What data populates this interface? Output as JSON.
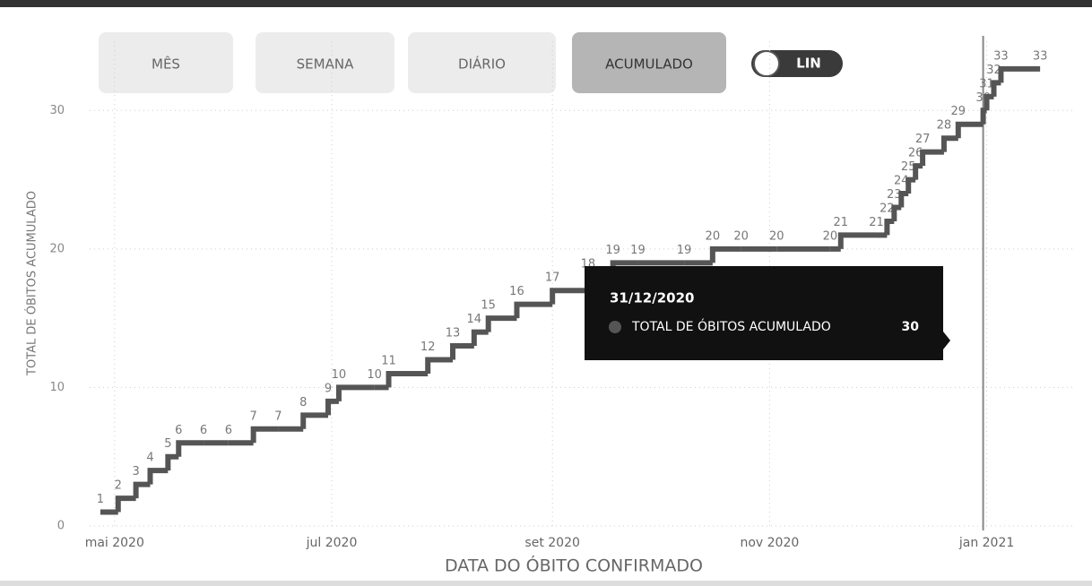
{
  "controls": {
    "buttons": [
      "MÊS",
      "SEMANA",
      "DIÁRIO",
      "ACUMULADO"
    ],
    "selected": 3,
    "toggle": "LIN"
  },
  "chart_data": {
    "type": "step",
    "x_label": "DATA DO ÓBITO CONFIRMADO",
    "y_label": "TOTAL DE ÓBITOS ACUMULADO",
    "series": [
      {
        "name": "TOTAL DE ÓBITOS ACUMULADO",
        "color": "#555555",
        "x": [
          "27/04/2020",
          "02/05/2020",
          "07/05/2020",
          "11/05/2020",
          "16/05/2020",
          "19/05/2020",
          "26/05/2020",
          "02/06/2020",
          "09/06/2020",
          "16/06/2020",
          "23/06/2020",
          "30/06/2020",
          "03/07/2020",
          "13/07/2020",
          "17/07/2020",
          "28/07/2020",
          "04/08/2020",
          "10/08/2020",
          "14/08/2020",
          "22/08/2020",
          "01/09/2020",
          "11/09/2020",
          "18/09/2020",
          "25/09/2020",
          "08/10/2020",
          "16/10/2020",
          "24/10/2020",
          "03/11/2020",
          "18/11/2020",
          "21/11/2020",
          "01/12/2020",
          "04/12/2020",
          "06/12/2020",
          "08/12/2020",
          "10/12/2020",
          "12/12/2020",
          "14/12/2020",
          "20/12/2020",
          "24/12/2020",
          "31/12/2020",
          "01/01/2021",
          "03/01/2021",
          "05/01/2021",
          "16/01/2021"
        ],
        "values": [
          1,
          2,
          3,
          4,
          5,
          6,
          6,
          6,
          7,
          7,
          8,
          9,
          10,
          10,
          11,
          12,
          13,
          14,
          15,
          16,
          17,
          18,
          19,
          19,
          19,
          20,
          20,
          20,
          20,
          21,
          21,
          22,
          23,
          24,
          25,
          26,
          27,
          28,
          29,
          30,
          31,
          32,
          33,
          33
        ]
      }
    ],
    "xlim": [
      "24/04/2020",
      "20/01/2021"
    ],
    "xticks": [
      {
        "value": "01/05/2020",
        "label": "mai 2020"
      },
      {
        "value": "01/07/2020",
        "label": "jul 2020"
      },
      {
        "value": "01/09/2020",
        "label": "set 2020"
      },
      {
        "value": "01/11/2020",
        "label": "nov 2020"
      },
      {
        "value": "01/01/2021",
        "label": "jan 2021"
      }
    ],
    "ylim": [
      0,
      35
    ],
    "yticks": [
      0,
      10,
      20,
      30
    ],
    "grid": true,
    "tooltip": {
      "date": "31/12/2020",
      "label": "TOTAL DE ÓBITOS ACUMULADO",
      "value": 30
    }
  }
}
